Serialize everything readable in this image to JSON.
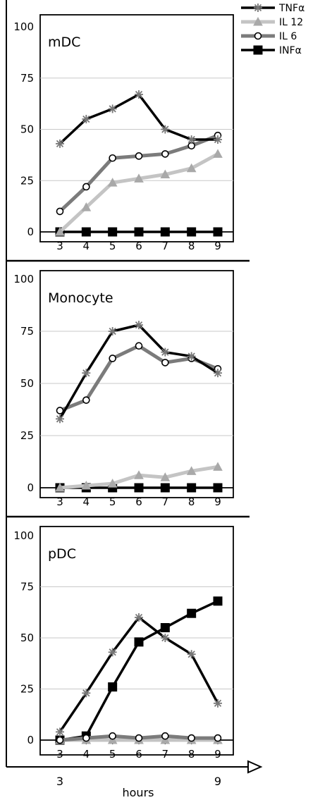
{
  "colors": {
    "TNFa": "#000000",
    "TNFa_marker": "#777777",
    "IL12": "#c4c4c4",
    "IL6": "#7b7b7b",
    "INFa": "#000000",
    "grid": "#c8c8c8"
  },
  "legend": [
    {
      "label": "TNFα",
      "series": "TNFa",
      "marker": "star"
    },
    {
      "label": "IL 12",
      "series": "IL12",
      "marker": "triangle"
    },
    {
      "label": "IL 6",
      "series": "IL6",
      "marker": "circle"
    },
    {
      "label": "INFα",
      "series": "INFa",
      "marker": "square"
    }
  ],
  "axis": {
    "bottom_start": "3",
    "bottom_end": "9",
    "label": "hours"
  },
  "chart_data": [
    {
      "type": "line",
      "title": "mDC",
      "x": [
        3,
        4,
        5,
        6,
        7,
        8,
        9
      ],
      "ylim": [
        0,
        100
      ],
      "yticks": [
        0,
        25,
        50,
        75,
        100
      ],
      "grid": true,
      "legend": "top-right",
      "series": [
        {
          "name": "TNFα",
          "key": "TNFa",
          "values": [
            43,
            55,
            60,
            67,
            50,
            45,
            45
          ]
        },
        {
          "name": "IL 12",
          "key": "IL12",
          "values": [
            0,
            12,
            24,
            26,
            28,
            31,
            38
          ]
        },
        {
          "name": "IL 6",
          "key": "IL6",
          "values": [
            10,
            22,
            36,
            37,
            38,
            42,
            47
          ]
        },
        {
          "name": "INFα",
          "key": "INFa",
          "values": [
            0,
            0,
            0,
            0,
            0,
            0,
            0
          ]
        }
      ]
    },
    {
      "type": "line",
      "title": "Monocyte",
      "x": [
        3,
        4,
        5,
        6,
        7,
        8,
        9
      ],
      "ylim": [
        0,
        100
      ],
      "yticks": [
        0,
        25,
        50,
        75,
        100
      ],
      "grid": true,
      "series": [
        {
          "name": "TNFα",
          "key": "TNFa",
          "values": [
            33,
            55,
            75,
            78,
            65,
            63,
            55
          ]
        },
        {
          "name": "IL 12",
          "key": "IL12",
          "values": [
            0,
            1,
            2,
            6,
            5,
            8,
            10
          ]
        },
        {
          "name": "IL 6",
          "key": "IL6",
          "values": [
            37,
            42,
            62,
            68,
            60,
            62,
            57
          ]
        },
        {
          "name": "INFα",
          "key": "INFa",
          "values": [
            0,
            0,
            0,
            0,
            0,
            0,
            0
          ]
        }
      ]
    },
    {
      "type": "line",
      "title": "pDC",
      "x": [
        3,
        4,
        5,
        6,
        7,
        8,
        9
      ],
      "ylim": [
        0,
        100
      ],
      "yticks": [
        0,
        25,
        50,
        75,
        100
      ],
      "grid": true,
      "series": [
        {
          "name": "TNFα",
          "key": "TNFa",
          "values": [
            4,
            23,
            43,
            60,
            50,
            42,
            18
          ]
        },
        {
          "name": "IL 12",
          "key": "IL12",
          "values": [
            0,
            0,
            0,
            0,
            0,
            0,
            0
          ]
        },
        {
          "name": "IL 6",
          "key": "IL6",
          "values": [
            0,
            1,
            2,
            1,
            2,
            1,
            1
          ]
        },
        {
          "name": "INFα",
          "key": "INFa",
          "values": [
            0,
            2,
            26,
            48,
            55,
            62,
            68
          ]
        }
      ]
    }
  ]
}
